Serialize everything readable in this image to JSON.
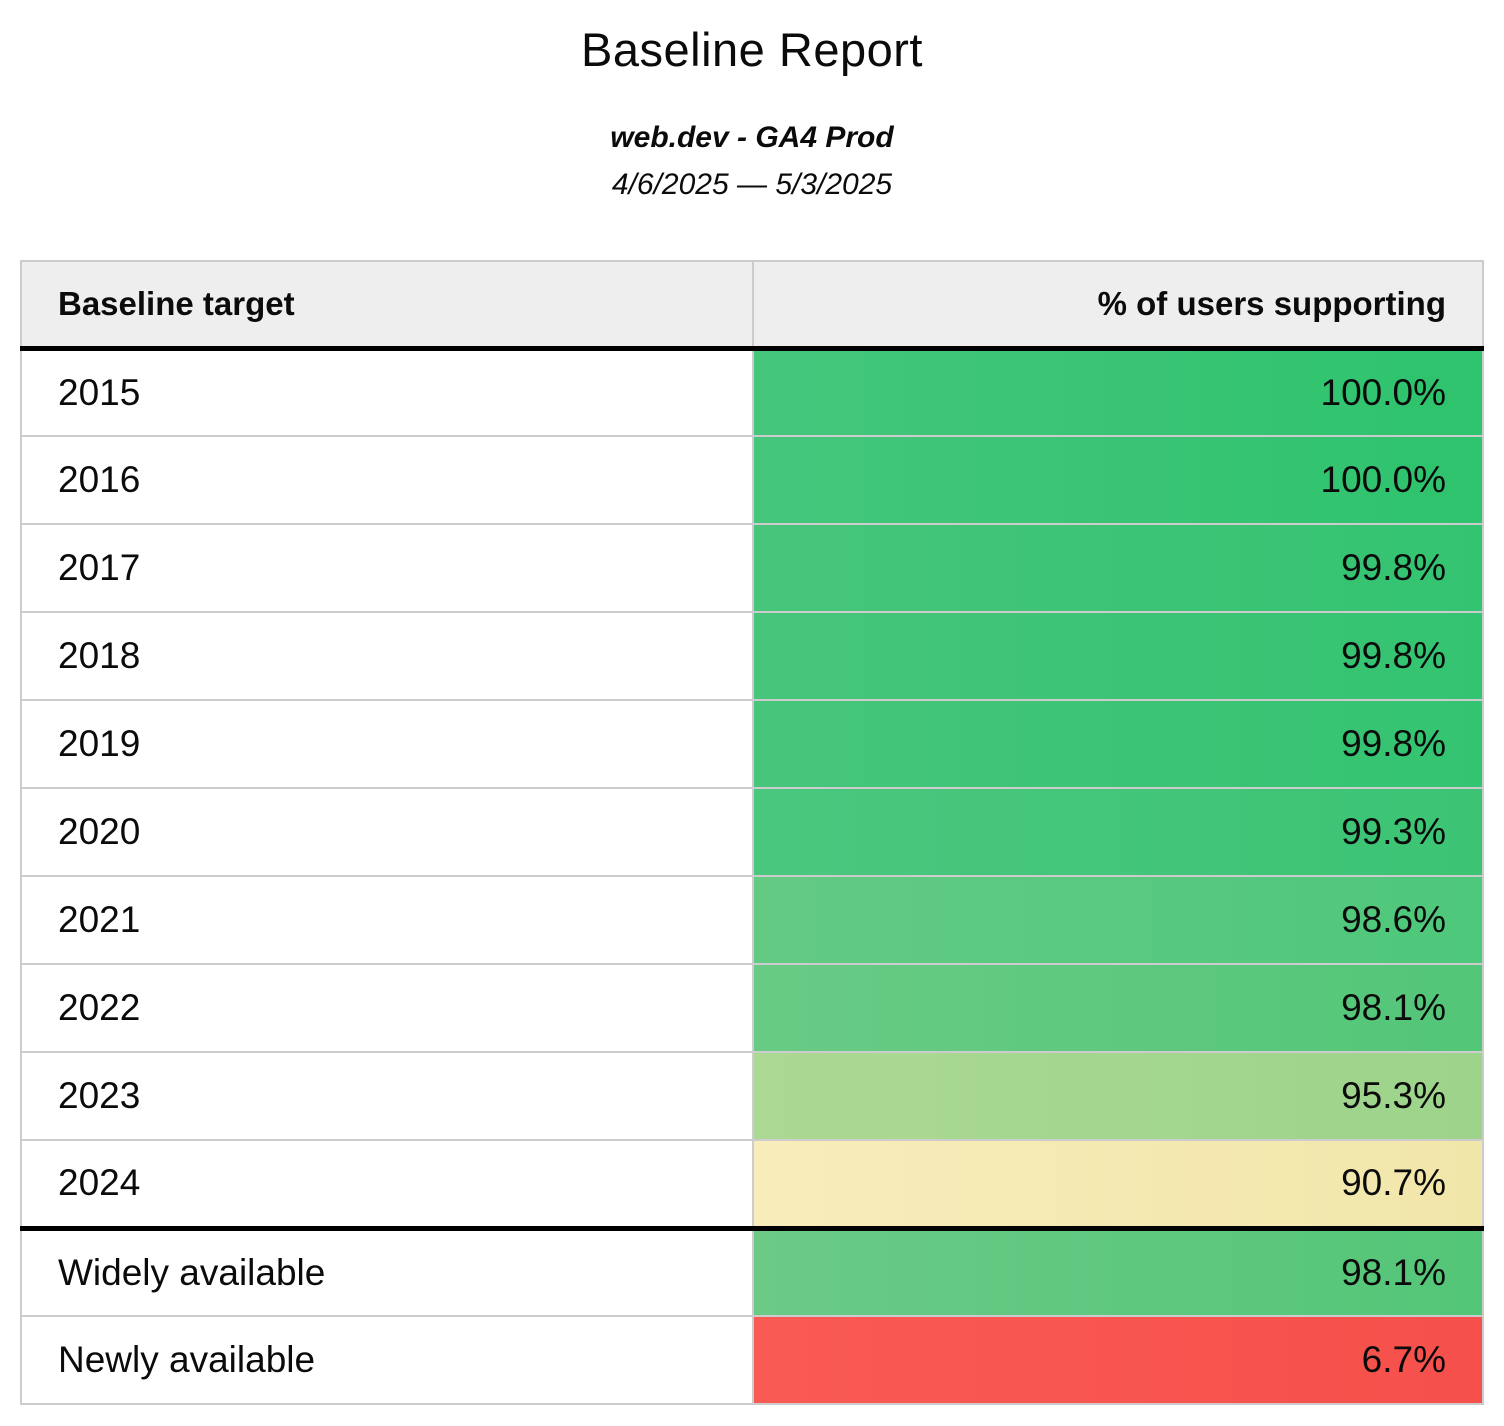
{
  "report": {
    "title": "Baseline Report",
    "subtitle": "web.dev - GA4 Prod",
    "date_range": "4/6/2025 — 5/3/2025"
  },
  "table": {
    "columns": [
      {
        "label": "Baseline target"
      },
      {
        "label": "% of users supporting"
      }
    ],
    "rows": [
      {
        "target": "2015",
        "value": "100.0%",
        "cell_color_left": "#44c67c",
        "cell_color_right": "#2ec36d",
        "section_start": false
      },
      {
        "target": "2016",
        "value": "100.0%",
        "cell_color_left": "#44c67c",
        "cell_color_right": "#2ec36d",
        "section_start": false
      },
      {
        "target": "2017",
        "value": "99.8%",
        "cell_color_left": "#46c57b",
        "cell_color_right": "#33c471",
        "section_start": false
      },
      {
        "target": "2018",
        "value": "99.8%",
        "cell_color_left": "#46c57b",
        "cell_color_right": "#33c471",
        "section_start": false
      },
      {
        "target": "2019",
        "value": "99.8%",
        "cell_color_left": "#46c57b",
        "cell_color_right": "#33c471",
        "section_start": false
      },
      {
        "target": "2020",
        "value": "99.3%",
        "cell_color_left": "#4ac77e",
        "cell_color_right": "#3cc474",
        "section_start": false
      },
      {
        "target": "2021",
        "value": "98.6%",
        "cell_color_left": "#63ca83",
        "cell_color_right": "#4ec87b",
        "section_start": false
      },
      {
        "target": "2022",
        "value": "98.1%",
        "cell_color_left": "#68cb85",
        "cell_color_right": "#53c678",
        "section_start": false
      },
      {
        "target": "2023",
        "value": "95.3%",
        "cell_color_left": "#abd993",
        "cell_color_right": "#9dd38b",
        "section_start": false
      },
      {
        "target": "2024",
        "value": "90.7%",
        "cell_color_left": "#f8ecba",
        "cell_color_right": "#f1e6aa",
        "section_start": false
      },
      {
        "target": "Widely available",
        "value": "98.1%",
        "cell_color_left": "#6aca86",
        "cell_color_right": "#54c678",
        "section_start": true
      },
      {
        "target": "Newly available",
        "value": "6.7%",
        "cell_color_left": "#fa5a54",
        "cell_color_right": "#f5504b",
        "section_start": false
      }
    ]
  },
  "colors": {
    "header_bg": "#eeeeee",
    "grid_border": "#cccccc",
    "section_border": "#000000",
    "text": "#0b0b0b"
  }
}
